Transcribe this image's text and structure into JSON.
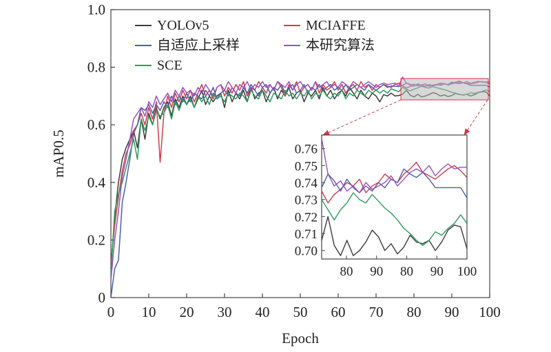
{
  "chart_data": {
    "type": "line",
    "title": "",
    "xlabel": "Epoch",
    "ylabel": "mAP0.5",
    "xlim": [
      0,
      100
    ],
    "ylim": [
      0,
      1.0
    ],
    "xticks": [
      "0",
      "10",
      "20",
      "30",
      "40",
      "50",
      "60",
      "70",
      "80",
      "90",
      "100"
    ],
    "yticks": [
      "0",
      "0.2",
      "0.4",
      "0.6",
      "0.8",
      "1.0"
    ],
    "legend_position": "top-left",
    "grid": false,
    "x": [
      0,
      1,
      2,
      3,
      4,
      5,
      6,
      7,
      8,
      9,
      10,
      11,
      12,
      13,
      14,
      15,
      16,
      17,
      18,
      19,
      20,
      21,
      22,
      23,
      24,
      25,
      26,
      27,
      28,
      29,
      30,
      31,
      32,
      33,
      34,
      35,
      36,
      37,
      38,
      39,
      40,
      41,
      42,
      43,
      44,
      45,
      46,
      47,
      48,
      49,
      50,
      51,
      52,
      53,
      54,
      55,
      56,
      57,
      58,
      59,
      60,
      61,
      62,
      63,
      64,
      65,
      66,
      67,
      68,
      69,
      70,
      71,
      72,
      73,
      74,
      75,
      76,
      77,
      78,
      79,
      80,
      81,
      82,
      83,
      84,
      85,
      86,
      87,
      88,
      89,
      90,
      91,
      92,
      93,
      94,
      95,
      96,
      97,
      98,
      99,
      100
    ],
    "series": [
      {
        "name": "YOLOv5",
        "color": "#3a3a3a",
        "values": [
          0.1,
          0.28,
          0.4,
          0.48,
          0.52,
          0.55,
          0.58,
          0.52,
          0.62,
          0.55,
          0.64,
          0.6,
          0.66,
          0.62,
          0.66,
          0.68,
          0.63,
          0.69,
          0.66,
          0.7,
          0.67,
          0.7,
          0.66,
          0.69,
          0.72,
          0.67,
          0.7,
          0.68,
          0.7,
          0.71,
          0.66,
          0.72,
          0.68,
          0.71,
          0.69,
          0.72,
          0.68,
          0.73,
          0.69,
          0.71,
          0.72,
          0.68,
          0.71,
          0.73,
          0.69,
          0.72,
          0.7,
          0.73,
          0.69,
          0.71,
          0.72,
          0.68,
          0.71,
          0.7,
          0.72,
          0.69,
          0.73,
          0.7,
          0.72,
          0.69,
          0.71,
          0.72,
          0.7,
          0.73,
          0.71,
          0.69,
          0.72,
          0.7,
          0.69,
          0.71,
          0.7,
          0.68,
          0.705,
          0.7,
          0.71,
          0.7,
          0.702,
          0.706,
          0.72,
          0.703,
          0.697,
          0.706,
          0.697,
          0.7,
          0.705,
          0.712,
          0.708,
          0.7,
          0.704,
          0.698,
          0.702,
          0.709,
          0.705,
          0.704,
          0.706,
          0.7,
          0.705,
          0.712,
          0.715,
          0.714,
          0.701
        ]
      },
      {
        "name": "MCIAFFE",
        "color": "#d23a48",
        "values": [
          0.12,
          0.25,
          0.35,
          0.44,
          0.5,
          0.53,
          0.58,
          0.6,
          0.64,
          0.6,
          0.66,
          0.62,
          0.68,
          0.47,
          0.64,
          0.7,
          0.66,
          0.71,
          0.68,
          0.72,
          0.69,
          0.72,
          0.68,
          0.71,
          0.74,
          0.7,
          0.72,
          0.69,
          0.73,
          0.74,
          0.7,
          0.73,
          0.71,
          0.74,
          0.72,
          0.75,
          0.7,
          0.73,
          0.72,
          0.75,
          0.73,
          0.71,
          0.74,
          0.72,
          0.75,
          0.73,
          0.7,
          0.74,
          0.72,
          0.75,
          0.71,
          0.73,
          0.74,
          0.72,
          0.75,
          0.71,
          0.74,
          0.72,
          0.73,
          0.75,
          0.72,
          0.74,
          0.71,
          0.73,
          0.74,
          0.72,
          0.75,
          0.73,
          0.74,
          0.72,
          0.74,
          0.73,
          0.74,
          0.735,
          0.73,
          0.74,
          0.745,
          0.735,
          0.728,
          0.733,
          0.736,
          0.74,
          0.738,
          0.742,
          0.734,
          0.738,
          0.74,
          0.745,
          0.742,
          0.74,
          0.745,
          0.748,
          0.752,
          0.746,
          0.744,
          0.742,
          0.745,
          0.748,
          0.75,
          0.747,
          0.743
        ]
      },
      {
        "name": "自适应上采样",
        "color": "#4a5fa8",
        "values": [
          0.0,
          0.1,
          0.13,
          0.33,
          0.4,
          0.48,
          0.57,
          0.6,
          0.66,
          0.65,
          0.67,
          0.64,
          0.67,
          0.65,
          0.68,
          0.66,
          0.7,
          0.67,
          0.7,
          0.68,
          0.71,
          0.68,
          0.71,
          0.7,
          0.69,
          0.72,
          0.7,
          0.73,
          0.69,
          0.71,
          0.72,
          0.7,
          0.73,
          0.71,
          0.7,
          0.73,
          0.71,
          0.74,
          0.72,
          0.7,
          0.73,
          0.74,
          0.71,
          0.73,
          0.72,
          0.74,
          0.71,
          0.73,
          0.74,
          0.71,
          0.72,
          0.74,
          0.71,
          0.73,
          0.72,
          0.74,
          0.72,
          0.73,
          0.74,
          0.72,
          0.73,
          0.72,
          0.74,
          0.72,
          0.73,
          0.74,
          0.73,
          0.72,
          0.74,
          0.73,
          0.72,
          0.73,
          0.74,
          0.73,
          0.735,
          0.734,
          0.733,
          0.737,
          0.745,
          0.741,
          0.735,
          0.742,
          0.737,
          0.734,
          0.738,
          0.735,
          0.74,
          0.737,
          0.742,
          0.74,
          0.748,
          0.745,
          0.743,
          0.746,
          0.742,
          0.737,
          0.737,
          0.737,
          0.737,
          0.737,
          0.731
        ]
      },
      {
        "name": "本研究算法",
        "color": "#9a4fc4",
        "values": [
          0.06,
          0.2,
          0.3,
          0.42,
          0.48,
          0.55,
          0.62,
          0.64,
          0.66,
          0.63,
          0.68,
          0.66,
          0.7,
          0.67,
          0.69,
          0.71,
          0.68,
          0.72,
          0.7,
          0.73,
          0.71,
          0.72,
          0.7,
          0.73,
          0.71,
          0.74,
          0.72,
          0.7,
          0.73,
          0.74,
          0.72,
          0.75,
          0.73,
          0.71,
          0.74,
          0.73,
          0.75,
          0.72,
          0.74,
          0.73,
          0.75,
          0.73,
          0.74,
          0.72,
          0.75,
          0.74,
          0.73,
          0.75,
          0.72,
          0.74,
          0.75,
          0.73,
          0.74,
          0.72,
          0.75,
          0.73,
          0.74,
          0.75,
          0.73,
          0.74,
          0.73,
          0.75,
          0.74,
          0.73,
          0.75,
          0.74,
          0.73,
          0.74,
          0.75,
          0.74,
          0.73,
          0.74,
          0.745,
          0.74,
          0.742,
          0.745,
          0.735,
          0.766,
          0.745,
          0.738,
          0.741,
          0.735,
          0.738,
          0.734,
          0.74,
          0.736,
          0.738,
          0.74,
          0.744,
          0.738,
          0.742,
          0.746,
          0.748,
          0.746,
          0.75,
          0.744,
          0.748,
          0.751,
          0.748,
          0.749,
          0.749
        ]
      },
      {
        "name": "SCE",
        "color": "#2e9a5c",
        "values": [
          0.08,
          0.3,
          0.36,
          0.4,
          0.45,
          0.5,
          0.55,
          0.48,
          0.62,
          0.58,
          0.63,
          0.6,
          0.65,
          0.63,
          0.64,
          0.67,
          0.62,
          0.68,
          0.65,
          0.69,
          0.67,
          0.69,
          0.66,
          0.7,
          0.68,
          0.7,
          0.67,
          0.71,
          0.69,
          0.7,
          0.68,
          0.71,
          0.7,
          0.69,
          0.71,
          0.7,
          0.68,
          0.72,
          0.7,
          0.69,
          0.72,
          0.7,
          0.68,
          0.71,
          0.7,
          0.69,
          0.72,
          0.7,
          0.71,
          0.69,
          0.71,
          0.7,
          0.72,
          0.69,
          0.71,
          0.7,
          0.72,
          0.7,
          0.69,
          0.71,
          0.7,
          0.72,
          0.69,
          0.71,
          0.7,
          0.72,
          0.71,
          0.7,
          0.72,
          0.71,
          0.72,
          0.71,
          0.72,
          0.71,
          0.725,
          0.72,
          0.715,
          0.73,
          0.724,
          0.718,
          0.724,
          0.728,
          0.734,
          0.73,
          0.728,
          0.733,
          0.729,
          0.725,
          0.722,
          0.718,
          0.713,
          0.71,
          0.706,
          0.703,
          0.706,
          0.711,
          0.709,
          0.713,
          0.716,
          0.721,
          0.716
        ]
      }
    ],
    "inset": {
      "source_xlim": [
        77,
        100
      ],
      "source_ylim": [
        0.695,
        0.768
      ],
      "xticks": [
        "80",
        "90",
        "80",
        "90",
        "100"
      ],
      "yticks": [
        "0.70",
        "0.71",
        "0.72",
        "0.73",
        "0.74",
        "0.75",
        "0.76"
      ]
    }
  }
}
